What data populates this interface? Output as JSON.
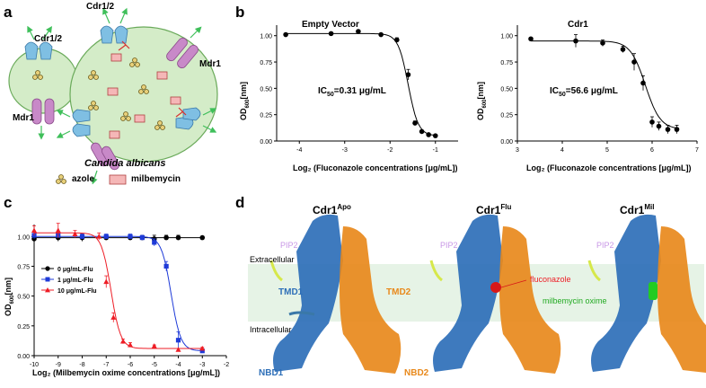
{
  "panels": {
    "a": {
      "letter": "a",
      "cdr12_left": "Cdr1/2",
      "cdr12_top": "Cdr1/2",
      "mdr1_left": "Mdr1",
      "mdr1_right": "Mdr1",
      "organism": "Candida albicans",
      "legend_azole": "azole",
      "legend_milbemycin": "milbemycin"
    },
    "b": {
      "letter": "b",
      "left_title": "Empty Vector",
      "right_title": "Cdr1",
      "ylabel_main": "OD",
      "ylabel_sub": "600",
      "ylabel_unit": "[nm]",
      "xlabel": "Log₂ (Fluconazole concentrations [μg/mL])",
      "ic50_left_pre": "IC",
      "ic50_left_sub": "50",
      "ic50_left_post": "=0.31 μg/mL",
      "ic50_right_pre": "IC",
      "ic50_right_sub": "50",
      "ic50_right_post": "=56.6 μg/mL"
    },
    "c": {
      "letter": "c",
      "xlabel": "Log₂ (Milbemycin oxime concentrations [μg/mL])"
    },
    "d": {
      "letter": "d",
      "title1": "Cdr1",
      "title1_sup": "Apo",
      "title2": "Cdr1",
      "title2_sup": "Flu",
      "title3": "Cdr1",
      "title3_sup": "Mil",
      "extracellular": "Extracellular",
      "intracellular": "Intracellular",
      "pip2": "PIP2",
      "tmd1": "TMD1",
      "tmd2": "TMD2",
      "nbd1": "NBD1",
      "nbd2": "NBD2",
      "fluconazole": "fluconazole",
      "milbemycin": "milbemycin oxime"
    }
  },
  "colors": {
    "black": "#000000",
    "blue": "#1f3bd8",
    "red": "#ee1c25",
    "tmd_blue": "#2e6fb8",
    "nbd_orange": "#e8891c",
    "membrane": "#e6f3e6",
    "pip2": "#c897e6",
    "cell_fill": "#d4ecc8",
    "abc_blue": "#7fbfe3",
    "mdr_purple": "#c889c8",
    "arrow_green": "#3fbf5a"
  },
  "chart_data": [
    {
      "type": "line",
      "title": "Empty Vector",
      "xlabel": "Log₂ (Fluconazole concentrations [μg/mL])",
      "ylabel": "OD600[nm]",
      "xlim": [
        -4.5,
        -0.5
      ],
      "ylim": [
        0,
        1.1
      ],
      "xticks": [
        -4,
        -3,
        -2,
        -1
      ],
      "yticks": [
        0.0,
        0.25,
        0.5,
        0.75,
        1.0
      ],
      "annotation": "IC50=0.31 μg/mL",
      "series": [
        {
          "color": "#000000",
          "x": [
            -4.3,
            -3.3,
            -2.7,
            -2.2,
            -1.85,
            -1.6,
            -1.45,
            -1.3,
            -1.15,
            -1.0
          ],
          "y": [
            1.01,
            1.02,
            1.04,
            1.01,
            0.96,
            0.63,
            0.17,
            0.09,
            0.06,
            0.05
          ],
          "err": [
            0.01,
            0.01,
            0.01,
            0.01,
            0.02,
            0.05,
            0.02,
            0.01,
            0.01,
            0.01
          ]
        }
      ]
    },
    {
      "type": "line",
      "title": "Cdr1",
      "xlabel": "Log₂ (Fluconazole concentrations [μg/mL])",
      "ylabel": "OD600[nm]",
      "xlim": [
        3,
        7
      ],
      "ylim": [
        0,
        1.1
      ],
      "xticks": [
        3,
        4,
        5,
        6,
        7
      ],
      "yticks": [
        0.0,
        0.25,
        0.5,
        0.75,
        1.0
      ],
      "annotation": "IC50=56.6 μg/mL",
      "series": [
        {
          "color": "#000000",
          "x": [
            3.3,
            4.3,
            4.9,
            5.35,
            5.6,
            5.8,
            6.0,
            6.15,
            6.35,
            6.55
          ],
          "y": [
            0.97,
            0.95,
            0.93,
            0.87,
            0.75,
            0.55,
            0.18,
            0.14,
            0.11,
            0.11
          ],
          "err": [
            0.01,
            0.06,
            0.03,
            0.03,
            0.08,
            0.07,
            0.05,
            0.04,
            0.04,
            0.04
          ]
        }
      ]
    },
    {
      "type": "line",
      "xlabel": "Log₂ (Milbemycin oxime concentrations [μg/mL])",
      "ylabel": "OD600[nm]",
      "xlim": [
        -10,
        -2
      ],
      "ylim": [
        0,
        1.1
      ],
      "xticks": [
        -10,
        -9,
        -8,
        -7,
        -6,
        -5,
        -4,
        -3,
        -2
      ],
      "yticks": [
        0.0,
        0.25,
        0.5,
        0.75,
        1.0
      ],
      "legend_position": "left",
      "series": [
        {
          "name": "0 μg/mL-Flu",
          "color": "#000000",
          "marker": "circle",
          "x": [
            -10,
            -9,
            -8,
            -7,
            -6,
            -5.5,
            -5,
            -4.5,
            -4,
            -3
          ],
          "y": [
            0.98,
            0.99,
            0.99,
            0.99,
            0.99,
            0.99,
            0.98,
            0.99,
            0.99,
            0.99
          ],
          "err": [
            0.04,
            0.03,
            0.03,
            0.02,
            0.02,
            0.02,
            0.03,
            0.02,
            0.02,
            0.01
          ]
        },
        {
          "name": "1 μg/mL-Flu",
          "color": "#1f3bd8",
          "marker": "square",
          "x": [
            -10,
            -9,
            -8,
            -7,
            -6,
            -5.5,
            -5,
            -4.5,
            -4,
            -3
          ],
          "y": [
            1.01,
            1.01,
            1.0,
            1.0,
            1.0,
            0.99,
            0.95,
            0.75,
            0.13,
            0.04
          ],
          "err": [
            0.03,
            0.02,
            0.02,
            0.02,
            0.02,
            0.02,
            0.03,
            0.04,
            0.07,
            0.01
          ]
        },
        {
          "name": "10 μg/mL-Flu",
          "color": "#ee1c25",
          "marker": "triangle",
          "x": [
            -10,
            -9,
            -8.3,
            -7.3,
            -7.0,
            -6.7,
            -6.3,
            -6.0,
            -5.0,
            -4.0,
            -3.0
          ],
          "y": [
            1.05,
            1.05,
            1.02,
            1.0,
            0.62,
            0.32,
            0.12,
            0.09,
            0.08,
            0.05,
            0.06
          ],
          "err": [
            0.04,
            0.06,
            0.03,
            0.03,
            0.05,
            0.04,
            0.02,
            0.02,
            0.01,
            0.01,
            0.01
          ]
        }
      ]
    }
  ]
}
